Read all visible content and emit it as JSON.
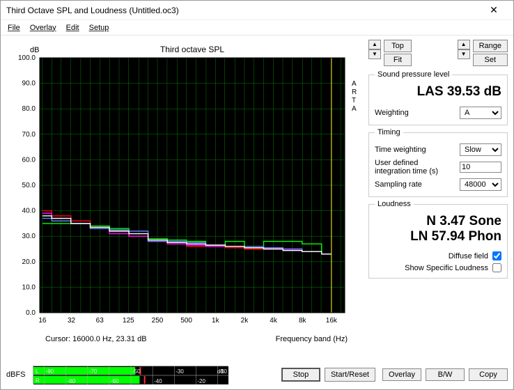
{
  "window": {
    "title": "Third Octave SPL and Loudness (Untitled.oc3)"
  },
  "menu": [
    "File",
    "Overlay",
    "Edit",
    "Setup"
  ],
  "chart": {
    "title": "Third octave SPL",
    "ylabel": "dB",
    "xlabel": "Frequency band (Hz)",
    "side_label": "ARTA",
    "bg": "#000000",
    "grid_color": "#008000",
    "axis_color": "#ffffff",
    "marker_color": "#ffff00",
    "marker_x": 16000,
    "ylim": [
      0,
      100
    ],
    "ytick_step": 10,
    "xticks": [
      16,
      32,
      63,
      125,
      250,
      500,
      "1k",
      "2k",
      "4k",
      "8k",
      "16k"
    ],
    "xvals": [
      16,
      32,
      63,
      125,
      250,
      500,
      1000,
      2000,
      4000,
      8000,
      16000
    ],
    "xlim": [
      15,
      22000
    ],
    "series": [
      {
        "color": "#00ff00",
        "data": [
          35,
          35,
          35,
          34,
          33,
          30,
          29,
          28.5,
          28,
          26,
          28,
          25,
          28,
          28,
          27,
          23
        ]
      },
      {
        "color": "#ff0000",
        "data": [
          40,
          38,
          36,
          33,
          32,
          30,
          28,
          27,
          26,
          26,
          25.5,
          25,
          25,
          24.5,
          24,
          23
        ]
      },
      {
        "color": "#ff00ff",
        "data": [
          39,
          37,
          35,
          33,
          31,
          30,
          28,
          27,
          26.5,
          26,
          26,
          25.5,
          25,
          24.5,
          24,
          23
        ]
      },
      {
        "color": "#6080ff",
        "data": [
          37,
          36,
          35,
          33,
          32.5,
          32,
          28,
          28,
          27.5,
          26.5,
          26,
          26,
          25.5,
          25,
          24,
          23
        ]
      },
      {
        "color": "#ffffff",
        "data": [
          38,
          37,
          35,
          33.5,
          32,
          31,
          28.5,
          27.5,
          27,
          26.5,
          26,
          25.5,
          25,
          24.4,
          24,
          23
        ]
      }
    ],
    "series_xfreqs": [
      16,
      25,
      40,
      63,
      100,
      160,
      250,
      400,
      630,
      1000,
      1600,
      2500,
      4000,
      6300,
      10000,
      16000
    ]
  },
  "cursor": {
    "label": "Cursor:",
    "value": "16000.0 Hz, 23.31 dB"
  },
  "top_buttons": {
    "top": "Top",
    "fit": "Fit",
    "range": "Range",
    "set": "Set"
  },
  "spl": {
    "legend": "Sound pressure level",
    "value": "LAS 39.53 dB",
    "weighting_label": "Weighting",
    "weighting_value": "A"
  },
  "timing": {
    "legend": "Timing",
    "tw_label": "Time weighting",
    "tw_value": "Slow",
    "udt_label": "User defined integration time (s)",
    "udt_value": "10",
    "sr_label": "Sampling rate",
    "sr_value": "48000"
  },
  "loudness": {
    "legend": "Loudness",
    "sone": "N 3.47 Sone",
    "phon": "LN 57.94 Phon",
    "diffuse_label": "Diffuse field",
    "diffuse": true,
    "ssl_label": "Show Specific Loudness",
    "ssl": false
  },
  "meters": {
    "label": "dBFS",
    "ticks": [
      -90,
      -80,
      -70,
      -60,
      -50,
      -40,
      -30,
      -20,
      -10,
      "dB"
    ],
    "L_value": -48,
    "R_value": -46,
    "bar_color": "#00ff00",
    "bg": "#000000",
    "tick_color": "#aaaaaa",
    "label_color": "#eeeeee"
  },
  "buttons": {
    "stop": "Stop",
    "reset": "Start/Reset",
    "overlay": "Overlay",
    "bw": "B/W",
    "copy": "Copy"
  }
}
